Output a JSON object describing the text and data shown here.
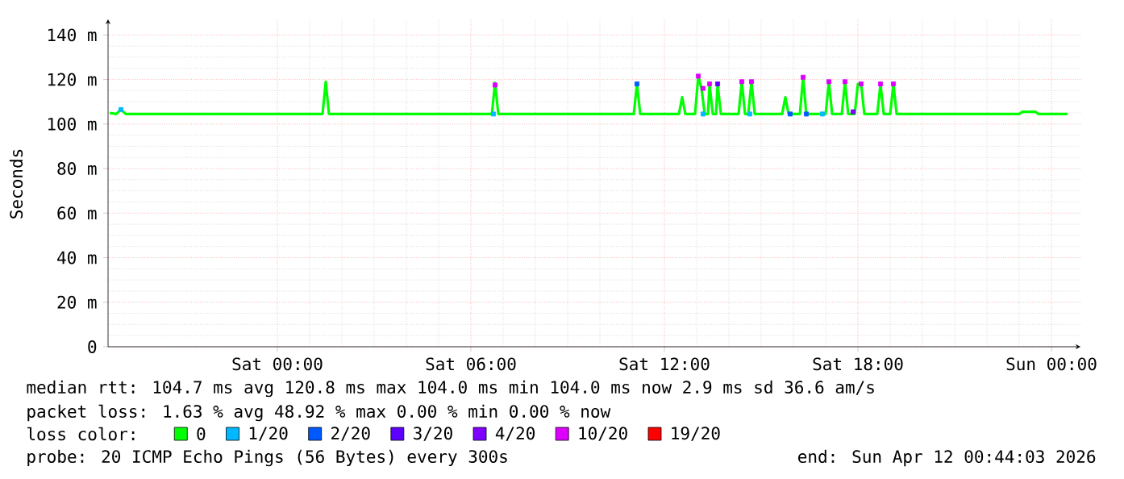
{
  "chart_data": {
    "type": "line",
    "ylabel": "Seconds",
    "legend_title": "loss color:",
    "legend": "bottom",
    "grid": true,
    "xlim": [
      "2026-04-10T18:45",
      "2026-04-12T00:54"
    ],
    "ylim": [
      0,
      147
    ],
    "xticks": [
      {
        "value": "2026-04-11T00:00",
        "label": "Sat 00:00"
      },
      {
        "value": "2026-04-11T06:00",
        "label": "Sat 06:00"
      },
      {
        "value": "2026-04-11T12:00",
        "label": "Sat 12:00"
      },
      {
        "value": "2026-04-11T18:00",
        "label": "Sat 18:00"
      },
      {
        "value": "2026-04-12T00:00",
        "label": "Sun 00:00"
      }
    ],
    "yticks": [
      0,
      {
        "value": 20,
        "label": "20 m"
      },
      {
        "value": 40,
        "label": "40 m"
      },
      {
        "value": 60,
        "label": "60 m"
      },
      {
        "value": 80,
        "label": "80 m"
      },
      {
        "value": 100,
        "label": "100 m"
      },
      {
        "value": 120,
        "label": "120 m"
      },
      {
        "value": 140,
        "label": "140 m"
      }
    ],
    "series": [
      {
        "name": "0",
        "type": "line",
        "color": "#00ff00",
        "x": [
          "2026-04-10T18:48",
          "2026-04-10T19:00",
          "2026-04-10T19:09",
          "2026-04-10T19:18",
          "2026-04-11T01:24",
          "2026-04-11T01:30",
          "2026-04-11T01:36",
          "2026-04-11T06:39",
          "2026-04-11T06:45",
          "2026-04-11T06:51",
          "2026-04-11T11:03",
          "2026-04-11T11:09",
          "2026-04-11T11:15",
          "2026-04-11T12:27",
          "2026-04-11T12:33",
          "2026-04-11T12:39",
          "2026-04-11T12:57",
          "2026-04-11T13:03",
          "2026-04-11T13:09",
          "2026-04-11T13:15",
          "2026-04-11T13:21",
          "2026-04-11T13:24",
          "2026-04-11T13:30",
          "2026-04-11T13:36",
          "2026-04-11T13:39",
          "2026-04-11T13:45",
          "2026-04-11T14:18",
          "2026-04-11T14:24",
          "2026-04-11T14:30",
          "2026-04-11T14:36",
          "2026-04-11T14:42",
          "2026-04-11T14:48",
          "2026-04-11T15:39",
          "2026-04-11T15:45",
          "2026-04-11T15:51",
          "2026-04-11T16:12",
          "2026-04-11T16:18",
          "2026-04-11T16:24",
          "2026-04-11T17:00",
          "2026-04-11T17:06",
          "2026-04-11T17:12",
          "2026-04-11T17:30",
          "2026-04-11T17:36",
          "2026-04-11T17:42",
          "2026-04-11T17:54",
          "2026-04-11T18:00",
          "2026-04-11T18:06",
          "2026-04-11T18:12",
          "2026-04-11T18:36",
          "2026-04-11T18:42",
          "2026-04-11T18:48",
          "2026-04-11T19:00",
          "2026-04-11T19:06",
          "2026-04-11T19:12",
          "2026-04-11T23:00",
          "2026-04-11T23:06",
          "2026-04-11T23:30",
          "2026-04-11T23:36",
          "2026-04-12T00:30"
        ],
        "values": [
          105,
          104.5,
          106.5,
          104.5,
          104.5,
          119,
          104.5,
          104.5,
          118.5,
          104.5,
          104.5,
          118,
          104.5,
          104.5,
          112,
          104.5,
          104.5,
          121.5,
          116,
          104.5,
          104.5,
          118,
          104.5,
          104.5,
          118,
          104.5,
          104.5,
          119,
          104.5,
          104.5,
          119,
          104.5,
          104.5,
          112,
          104.5,
          104.5,
          121,
          104.5,
          104.5,
          119,
          104.5,
          104.5,
          119,
          104.5,
          104.5,
          118,
          118,
          104.5,
          104.5,
          118,
          104.5,
          104.5,
          118,
          104.5,
          104.5,
          105.5,
          105.5,
          104.5,
          104.5
        ]
      },
      {
        "name": "1/20",
        "type": "scatter",
        "color": "#00b8ff",
        "x": [
          "2026-04-10T19:09",
          "2026-04-11T06:42",
          "2026-04-11T13:12",
          "2026-04-11T14:39",
          "2026-04-11T16:54"
        ],
        "values": [
          106.5,
          104.5,
          104.5,
          104.5,
          104.5
        ]
      },
      {
        "name": "2/20",
        "type": "scatter",
        "color": "#0059ff",
        "x": [
          "2026-04-11T11:09",
          "2026-04-11T15:54",
          "2026-04-11T16:24"
        ],
        "values": [
          118,
          104.5,
          104.5
        ]
      },
      {
        "name": "3/20",
        "type": "scatter",
        "color": "#5e00ff",
        "x": [
          "2026-04-11T13:39"
        ],
        "values": [
          118
        ]
      },
      {
        "name": "4/20",
        "type": "scatter",
        "color": "#7e00ff",
        "x": [
          "2026-04-11T17:51"
        ],
        "values": [
          105.5
        ]
      },
      {
        "name": "10/20",
        "type": "scatter",
        "color": "#dd00ff",
        "x": [
          "2026-04-11T06:45",
          "2026-04-11T13:03",
          "2026-04-11T13:12",
          "2026-04-11T13:24",
          "2026-04-11T14:24",
          "2026-04-11T14:42",
          "2026-04-11T16:18",
          "2026-04-11T17:06",
          "2026-04-11T17:36",
          "2026-04-11T18:06",
          "2026-04-11T18:42",
          "2026-04-11T19:06"
        ],
        "values": [
          117.5,
          121.5,
          116,
          118,
          119,
          119,
          121,
          119,
          119,
          118,
          118,
          118
        ]
      },
      {
        "name": "19/20",
        "type": "scatter",
        "color": "#ff0000"
      }
    ],
    "annotations": [
      "median rtt:  104.7 ms avg  120.8 ms max  104.0 ms min  104.0 ms now  2.9 ms sd  36.6   am/s",
      "packet loss: 1.63 % avg  48.92 % max  0.00 % min  0.00 % now",
      "probe:       20 ICMP Echo Pings (56 Bytes) every 300s",
      "end: Sun Apr 12 00:44:03 2026"
    ]
  }
}
